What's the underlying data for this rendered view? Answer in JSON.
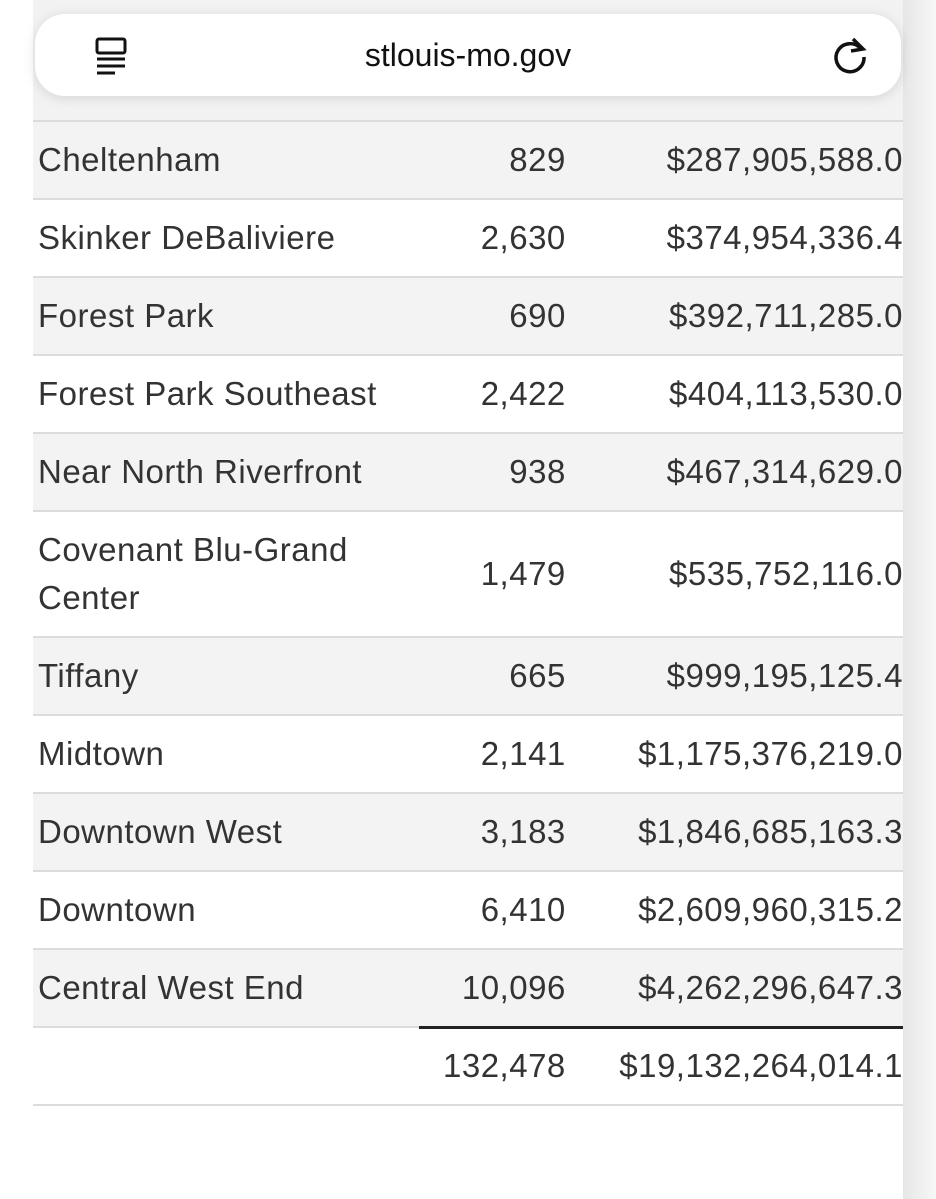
{
  "browser": {
    "url": "stlouis-mo.gov"
  },
  "table": {
    "rows": [
      [
        "Cheltenham",
        "829",
        "$287,905,588.0"
      ],
      [
        "Skinker DeBaliviere",
        "2,630",
        "$374,954,336.4"
      ],
      [
        "Forest Park",
        "690",
        "$392,711,285.0"
      ],
      [
        "Forest Park Southeast",
        "2,422",
        "$404,113,530.0"
      ],
      [
        "Near North Riverfront",
        "938",
        "$467,314,629.0"
      ],
      [
        "Covenant Blu-Grand Center",
        "1,479",
        "$535,752,116.0"
      ],
      [
        "Tiffany",
        "665",
        "$999,195,125.4"
      ],
      [
        "Midtown",
        "2,141",
        "$1,175,376,219.0"
      ],
      [
        "Downtown West",
        "3,183",
        "$1,846,685,163.3"
      ],
      [
        "Downtown",
        "6,410",
        "$2,609,960,315.2"
      ],
      [
        "Central West End",
        "10,096",
        "$4,262,296,647.3"
      ]
    ],
    "total": [
      "132,478",
      "$19,132,264,014.1"
    ]
  }
}
